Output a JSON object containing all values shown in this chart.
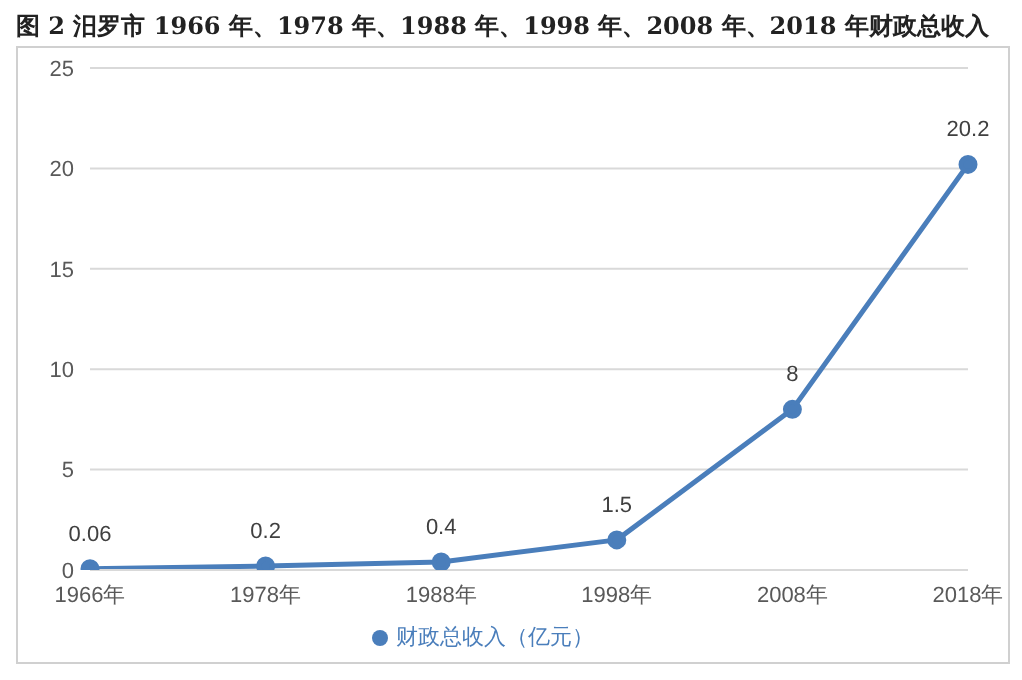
{
  "chart_data": {
    "type": "line",
    "title": "图 2   汨罗市 1966 年、1978 年、1988 年、1998 年、2008 年、2018 年财政总收入",
    "categories": [
      "1966年",
      "1978年",
      "1988年",
      "1998年",
      "2008年",
      "2018年"
    ],
    "series": [
      {
        "name": "财政总收入（亿元）",
        "color": "#4a7ebb",
        "values": [
          0.06,
          0.2,
          0.4,
          1.5,
          8,
          20.2
        ]
      }
    ],
    "ylim": [
      0,
      25
    ],
    "yticks": [
      0,
      5,
      10,
      15,
      20,
      25
    ],
    "grid": "y",
    "legend": "bottom",
    "marker": "circle",
    "line_style": "solid",
    "data_labels": true
  }
}
